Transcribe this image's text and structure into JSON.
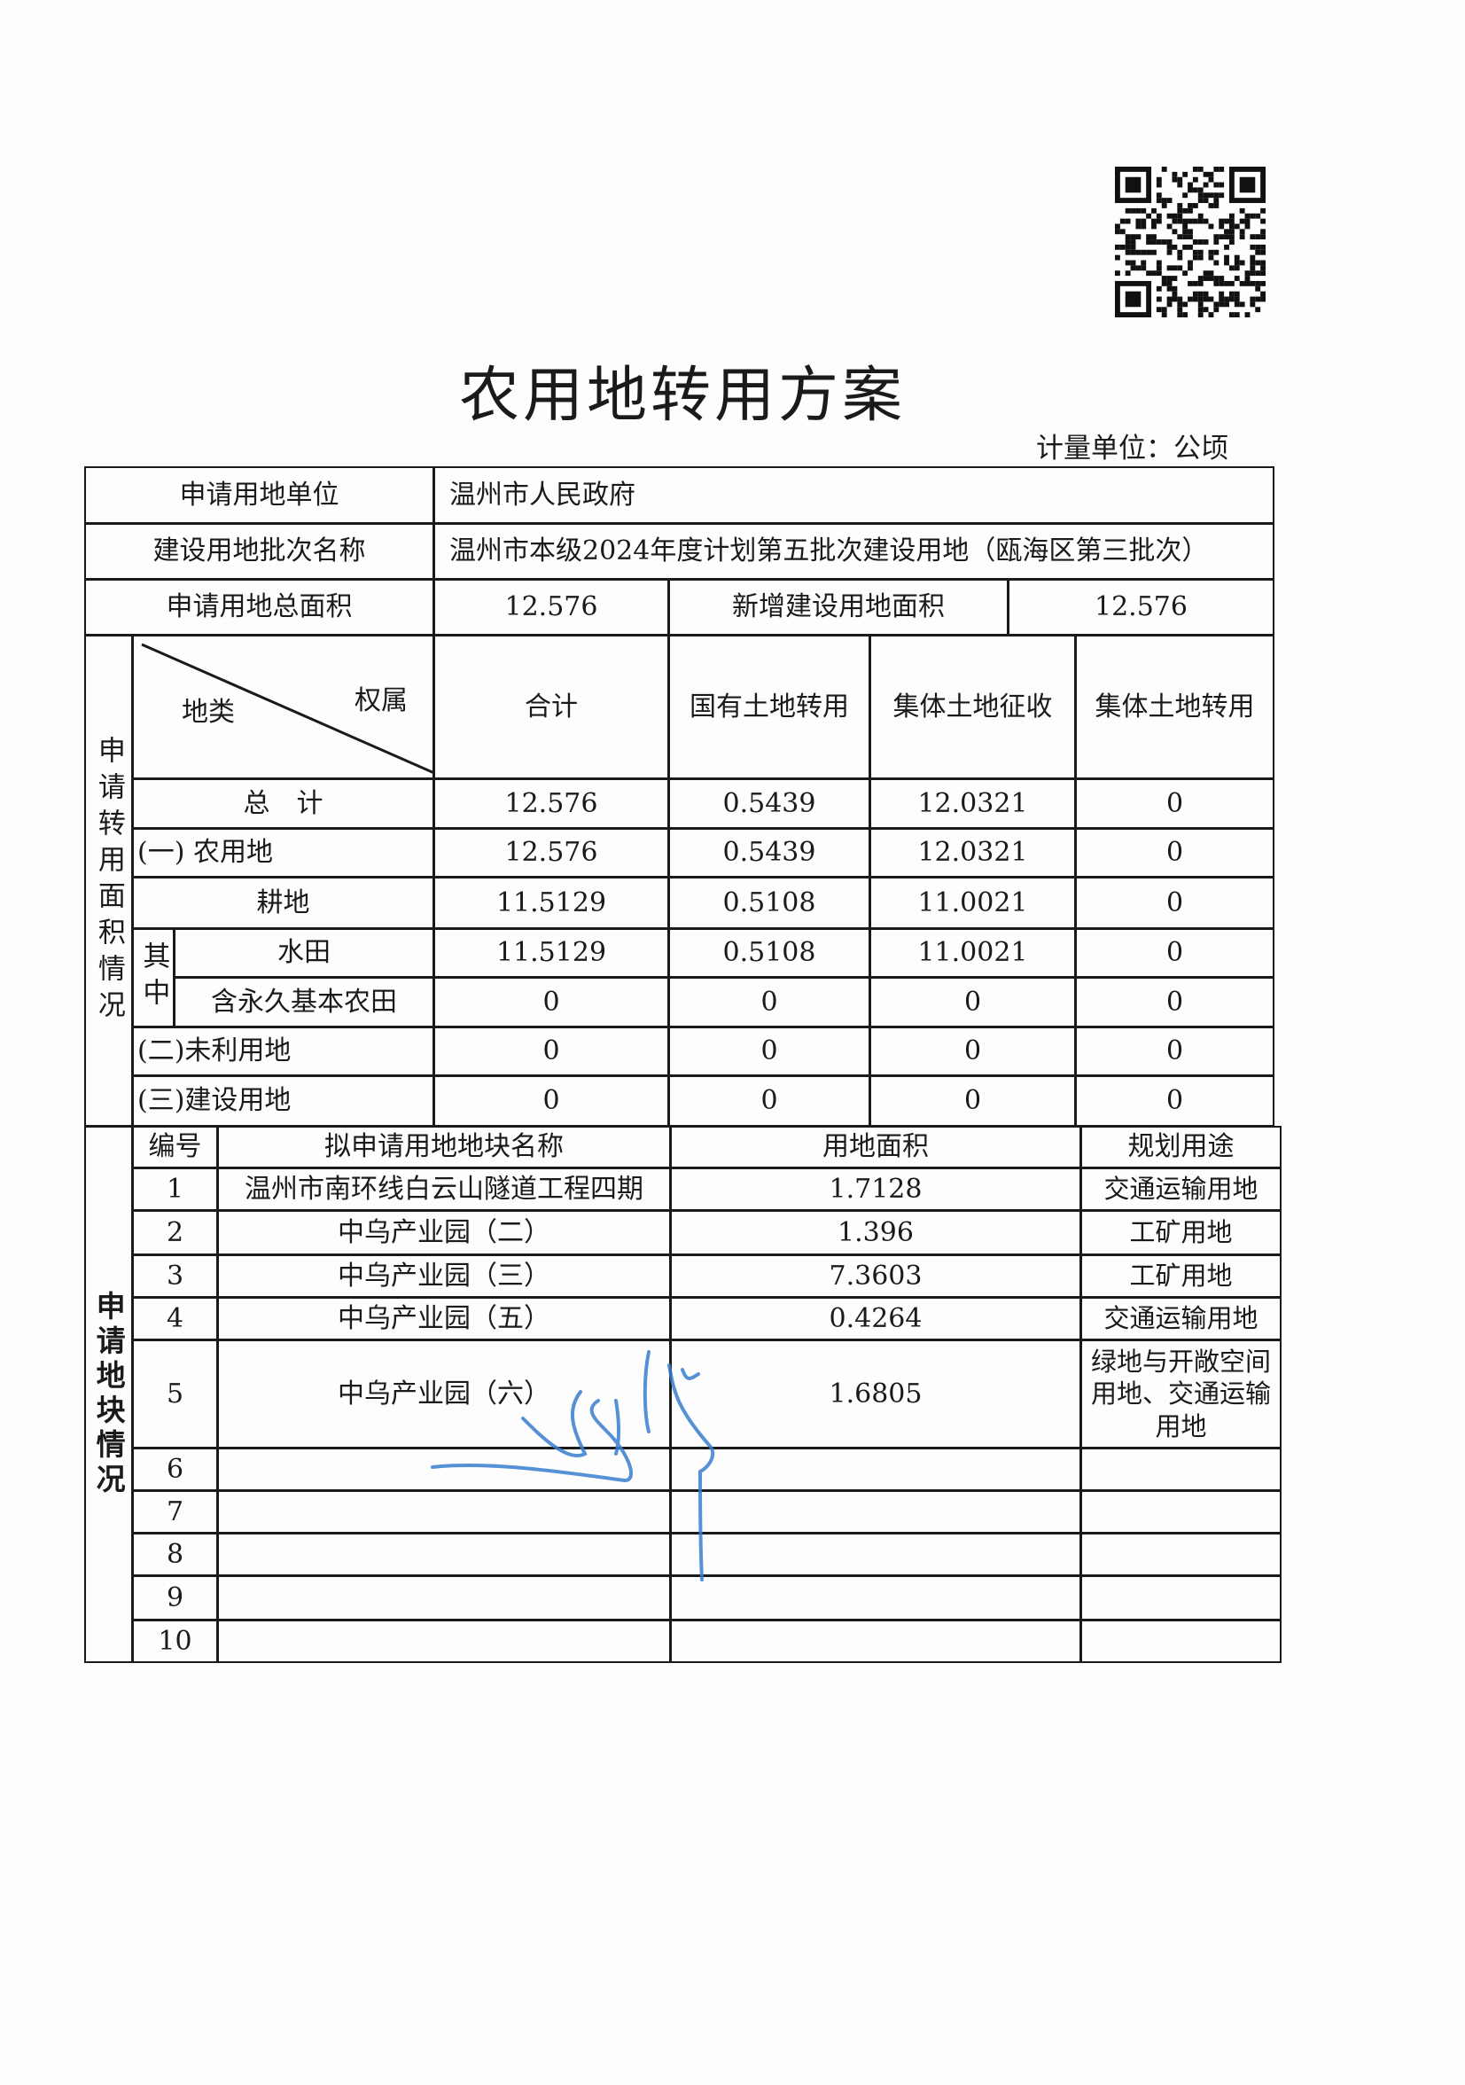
{
  "document": {
    "title": "农用地转用方案",
    "unit_label": "计量单位：公顷"
  },
  "header": {
    "applicant_label": "申请用地单位",
    "applicant_value": "温州市人民政府",
    "batch_label": "建设用地批次名称",
    "batch_value": "温州市本级2024年度计划第五批次建设用地（瓯海区第三批次）",
    "total_area_label": "申请用地总面积",
    "total_area_value": "12.576",
    "new_area_label": "新增建设用地面积",
    "new_area_value": "12.576"
  },
  "conversion": {
    "section_label": "申请转用面积情况",
    "diag_left": "地类",
    "diag_right": "权属",
    "columns": [
      "合计",
      "国有土地转用",
      "集体土地征收",
      "集体土地转用"
    ],
    "qizhong_label": "其中",
    "rows": [
      {
        "label": "总　计",
        "values": [
          "12.576",
          "0.5439",
          "12.0321",
          "0"
        ]
      },
      {
        "label": "(一) 农用地",
        "values": [
          "12.576",
          "0.5439",
          "12.0321",
          "0"
        ]
      },
      {
        "label": "耕地",
        "values": [
          "11.5129",
          "0.5108",
          "11.0021",
          "0"
        ]
      },
      {
        "label": "水田",
        "values": [
          "11.5129",
          "0.5108",
          "11.0021",
          "0"
        ]
      },
      {
        "label": "含永久基本农田",
        "values": [
          "0",
          "0",
          "0",
          "0"
        ]
      },
      {
        "label": "(二)未利用地",
        "values": [
          "0",
          "0",
          "0",
          "0"
        ]
      },
      {
        "label": "(三)建设用地",
        "values": [
          "0",
          "0",
          "0",
          "0"
        ]
      }
    ]
  },
  "parcels": {
    "section_label": "申请地块情况",
    "columns": [
      "编号",
      "拟申请用地地块名称",
      "用地面积",
      "规划用途"
    ],
    "rows": [
      {
        "no": "1",
        "name": "温州市南环线白云山隧道工程四期",
        "area": "1.7128",
        "use": "交通运输用地"
      },
      {
        "no": "2",
        "name": "中乌产业园（二）",
        "area": "1.396",
        "use": "工矿用地"
      },
      {
        "no": "3",
        "name": "中乌产业园（三）",
        "area": "7.3603",
        "use": "工矿用地"
      },
      {
        "no": "4",
        "name": "中乌产业园（五）",
        "area": "0.4264",
        "use": "交通运输用地"
      },
      {
        "no": "5",
        "name": "中乌产业园（六）",
        "area": "1.6805",
        "use": "绿地与开敞空间用地、交通运输用地"
      },
      {
        "no": "6",
        "name": "",
        "area": "",
        "use": ""
      },
      {
        "no": "7",
        "name": "",
        "area": "",
        "use": ""
      },
      {
        "no": "8",
        "name": "",
        "area": "",
        "use": ""
      },
      {
        "no": "9",
        "name": "",
        "area": "",
        "use": ""
      },
      {
        "no": "10",
        "name": "",
        "area": "",
        "use": ""
      }
    ]
  },
  "colors": {
    "ink": "#1a1a1a",
    "signature": "#3a7fd0"
  }
}
